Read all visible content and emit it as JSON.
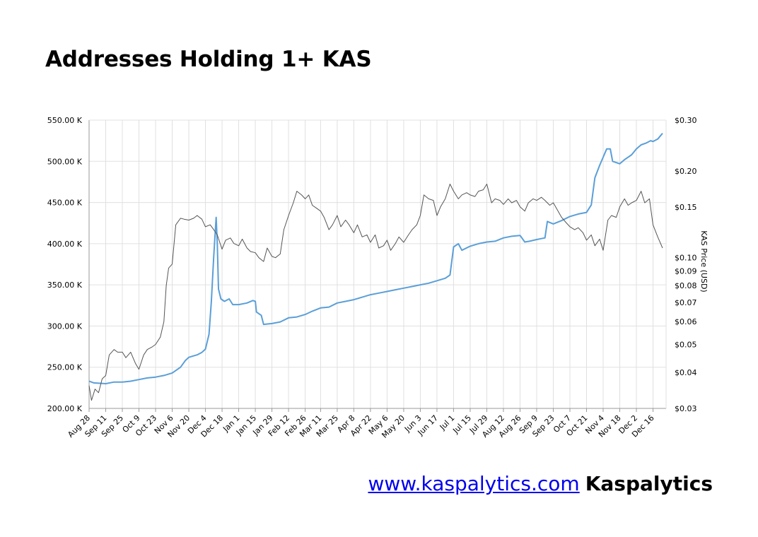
{
  "page": {
    "title": "Addresses Holding 1+ KAS",
    "footer_link": "www.kaspalytics.com",
    "footer_brand": "Kaspalytics"
  },
  "colors": {
    "addresses_line": "#5a9fd8",
    "price_line": "#555555",
    "grid": "#e0e0e0",
    "axis": "#999999"
  },
  "chart_data": {
    "type": "line",
    "title": "Addresses Holding 1+ KAS",
    "grid": true,
    "x_tick_labels": [
      "Aug 28",
      "Sep 11",
      "Sep 25",
      "Oct 9",
      "Oct 23",
      "Nov 6",
      "Nov 20",
      "Dec 4",
      "Dec 18",
      "Jan 1",
      "Jan 15",
      "Jan 29",
      "Feb 12",
      "Feb 26",
      "Mar 11",
      "Mar 25",
      "Apr 8",
      "Apr 22",
      "May 6",
      "May 20",
      "Jun 3",
      "Jun 17",
      "Jul 1",
      "Jul 15",
      "Jul 29",
      "Aug 12",
      "Aug 26",
      "Sep 9",
      "Sep 23",
      "Oct 7",
      "Oct 21",
      "Nov 4",
      "Nov 18",
      "Dec 2",
      "Dec 16"
    ],
    "y_left": {
      "label": "",
      "range": [
        200,
        550
      ],
      "ticks": [
        200,
        250,
        300,
        350,
        400,
        450,
        500,
        550
      ],
      "tick_labels": [
        "200.00 K",
        "250.00 K",
        "300.00 K",
        "350.00 K",
        "400.00 K",
        "450.00 K",
        "500.00 K",
        "550.00 K"
      ]
    },
    "y_right": {
      "label": "KAS Price (USD)",
      "scale": "log",
      "range": [
        0.03,
        0.3
      ],
      "ticks": [
        0.03,
        0.04,
        0.05,
        0.06,
        0.07,
        0.08,
        0.09,
        0.1,
        0.15,
        0.2,
        0.3
      ],
      "tick_labels": [
        "$0.03",
        "$0.04",
        "$0.05",
        "$0.06",
        "$0.07",
        "$0.08",
        "$0.09",
        "$0.10",
        "$0.15",
        "$0.20",
        "$0.30"
      ]
    },
    "series": [
      {
        "axis": "left",
        "unit": "K addresses",
        "points": [
          [
            "Aug 28",
            233
          ],
          [
            "Sep 1",
            231
          ],
          [
            "Sep 11",
            230
          ],
          [
            "Sep 18",
            232
          ],
          [
            "Sep 25",
            232
          ],
          [
            "Oct 2",
            233
          ],
          [
            "Oct 9",
            235
          ],
          [
            "Oct 16",
            237
          ],
          [
            "Oct 23",
            238
          ],
          [
            "Oct 30",
            240
          ],
          [
            "Nov 6",
            243
          ],
          [
            "Nov 13",
            250
          ],
          [
            "Nov 17",
            258
          ],
          [
            "Nov 20",
            262
          ],
          [
            "Nov 27",
            265
          ],
          [
            "Dec 1",
            268
          ],
          [
            "Dec 4",
            272
          ],
          [
            "Dec 7",
            290
          ],
          [
            "Dec 9",
            330
          ],
          [
            "Dec 11",
            385
          ],
          [
            "Dec 13",
            432
          ],
          [
            "Dec 14",
            400
          ],
          [
            "Dec 15",
            345
          ],
          [
            "Dec 17",
            333
          ],
          [
            "Dec 20",
            330
          ],
          [
            "Dec 24",
            333
          ],
          [
            "Dec 27",
            326
          ],
          [
            "Jan 1",
            326
          ],
          [
            "Jan 8",
            328
          ],
          [
            "Jan 13",
            331
          ],
          [
            "Jan 15",
            330
          ],
          [
            "Jan 16",
            317
          ],
          [
            "Jan 20",
            313
          ],
          [
            "Jan 22",
            302
          ],
          [
            "Jan 29",
            303
          ],
          [
            "Feb 5",
            305
          ],
          [
            "Feb 12",
            310
          ],
          [
            "Feb 19",
            311
          ],
          [
            "Feb 26",
            314
          ],
          [
            "Mar 4",
            318
          ],
          [
            "Mar 11",
            322
          ],
          [
            "Mar 18",
            323
          ],
          [
            "Mar 25",
            328
          ],
          [
            "Apr 1",
            330
          ],
          [
            "Apr 8",
            332
          ],
          [
            "Apr 15",
            335
          ],
          [
            "Apr 22",
            338
          ],
          [
            "Apr 29",
            340
          ],
          [
            "May 6",
            342
          ],
          [
            "May 13",
            344
          ],
          [
            "May 20",
            346
          ],
          [
            "May 27",
            348
          ],
          [
            "Jun 3",
            350
          ],
          [
            "Jun 10",
            352
          ],
          [
            "Jun 17",
            355
          ],
          [
            "Jun 24",
            358
          ],
          [
            "Jun 28",
            362
          ],
          [
            "Jul 1",
            396
          ],
          [
            "Jul 5",
            400
          ],
          [
            "Jul 8",
            392
          ],
          [
            "Jul 15",
            397
          ],
          [
            "Jul 22",
            400
          ],
          [
            "Jul 29",
            402
          ],
          [
            "Aug 5",
            403
          ],
          [
            "Aug 12",
            407
          ],
          [
            "Aug 19",
            409
          ],
          [
            "Aug 26",
            410
          ],
          [
            "Aug 30",
            402
          ],
          [
            "Sep 3",
            403
          ],
          [
            "Sep 9",
            405
          ],
          [
            "Sep 16",
            407
          ],
          [
            "Sep 18",
            427
          ],
          [
            "Sep 23",
            424
          ],
          [
            "Sep 30",
            428
          ],
          [
            "Oct 7",
            433
          ],
          [
            "Oct 14",
            436
          ],
          [
            "Oct 21",
            438
          ],
          [
            "Oct 25",
            447
          ],
          [
            "Oct 28",
            480
          ],
          [
            "Nov 1",
            495
          ],
          [
            "Nov 4",
            505
          ],
          [
            "Nov 7",
            515
          ],
          [
            "Nov 10",
            515
          ],
          [
            "Nov 12",
            500
          ],
          [
            "Nov 18",
            497
          ],
          [
            "Nov 22",
            502
          ],
          [
            "Nov 28",
            508
          ],
          [
            "Dec 2",
            515
          ],
          [
            "Dec 6",
            520
          ],
          [
            "Dec 10",
            522
          ],
          [
            "Dec 14",
            525
          ],
          [
            "Dec 16",
            524
          ],
          [
            "Dec 20",
            527
          ],
          [
            "Dec 24",
            534
          ]
        ]
      },
      {
        "axis": "right",
        "unit": "USD",
        "points": [
          [
            "Aug 28",
            0.036
          ],
          [
            "Aug 30",
            0.032
          ],
          [
            "Sep 2",
            0.035
          ],
          [
            "Sep 5",
            0.034
          ],
          [
            "Sep 8",
            0.038
          ],
          [
            "Sep 11",
            0.039
          ],
          [
            "Sep 14",
            0.046
          ],
          [
            "Sep 18",
            0.048
          ],
          [
            "Sep 21",
            0.047
          ],
          [
            "Sep 25",
            0.047
          ],
          [
            "Sep 28",
            0.045
          ],
          [
            "Oct 2",
            0.047
          ],
          [
            "Oct 6",
            0.043
          ],
          [
            "Oct 9",
            0.041
          ],
          [
            "Oct 13",
            0.046
          ],
          [
            "Oct 16",
            0.048
          ],
          [
            "Oct 20",
            0.049
          ],
          [
            "Oct 23",
            0.05
          ],
          [
            "Oct 27",
            0.053
          ],
          [
            "Oct 30",
            0.06
          ],
          [
            "Nov 1",
            0.08
          ],
          [
            "Nov 3",
            0.092
          ],
          [
            "Nov 6",
            0.095
          ],
          [
            "Nov 9",
            0.13
          ],
          [
            "Nov 13",
            0.137
          ],
          [
            "Nov 16",
            0.136
          ],
          [
            "Nov 20",
            0.135
          ],
          [
            "Nov 24",
            0.137
          ],
          [
            "Nov 27",
            0.14
          ],
          [
            "Dec 1",
            0.136
          ],
          [
            "Dec 4",
            0.128
          ],
          [
            "Dec 8",
            0.13
          ],
          [
            "Dec 11",
            0.125
          ],
          [
            "Dec 14",
            0.12
          ],
          [
            "Dec 18",
            0.107
          ],
          [
            "Dec 21",
            0.115
          ],
          [
            "Dec 25",
            0.117
          ],
          [
            "Dec 28",
            0.112
          ],
          [
            "Jan 1",
            0.11
          ],
          [
            "Jan 4",
            0.116
          ],
          [
            "Jan 8",
            0.108
          ],
          [
            "Jan 11",
            0.105
          ],
          [
            "Jan 15",
            0.104
          ],
          [
            "Jan 18",
            0.1
          ],
          [
            "Jan 22",
            0.097
          ],
          [
            "Jan 25",
            0.108
          ],
          [
            "Jan 29",
            0.101
          ],
          [
            "Feb 1",
            0.1
          ],
          [
            "Feb 5",
            0.103
          ],
          [
            "Feb 8",
            0.125
          ],
          [
            "Feb 12",
            0.14
          ],
          [
            "Feb 16",
            0.155
          ],
          [
            "Feb 19",
            0.17
          ],
          [
            "Feb 23",
            0.165
          ],
          [
            "Feb 26",
            0.16
          ],
          [
            "Mar 1",
            0.165
          ],
          [
            "Mar 4",
            0.152
          ],
          [
            "Mar 8",
            0.148
          ],
          [
            "Mar 11",
            0.145
          ],
          [
            "Mar 14",
            0.138
          ],
          [
            "Mar 18",
            0.125
          ],
          [
            "Mar 21",
            0.13
          ],
          [
            "Mar 25",
            0.14
          ],
          [
            "Mar 28",
            0.128
          ],
          [
            "Apr 1",
            0.135
          ],
          [
            "Apr 4",
            0.13
          ],
          [
            "Apr 8",
            0.122
          ],
          [
            "Apr 11",
            0.13
          ],
          [
            "Apr 15",
            0.118
          ],
          [
            "Apr 19",
            0.12
          ],
          [
            "Apr 22",
            0.113
          ],
          [
            "Apr 26",
            0.12
          ],
          [
            "Apr 29",
            0.108
          ],
          [
            "May 3",
            0.11
          ],
          [
            "May 6",
            0.115
          ],
          [
            "May 9",
            0.106
          ],
          [
            "May 13",
            0.112
          ],
          [
            "May 16",
            0.118
          ],
          [
            "May 20",
            0.113
          ],
          [
            "May 24",
            0.12
          ],
          [
            "May 27",
            0.125
          ],
          [
            "May 31",
            0.13
          ],
          [
            "Jun 3",
            0.14
          ],
          [
            "Jun 6",
            0.165
          ],
          [
            "Jun 10",
            0.16
          ],
          [
            "Jun 14",
            0.158
          ],
          [
            "Jun 17",
            0.14
          ],
          [
            "Jun 20",
            0.15
          ],
          [
            "Jun 24",
            0.16
          ],
          [
            "Jun 28",
            0.18
          ],
          [
            "Jul 1",
            0.17
          ],
          [
            "Jul 5",
            0.16
          ],
          [
            "Jul 8",
            0.165
          ],
          [
            "Jul 12",
            0.168
          ],
          [
            "Jul 15",
            0.165
          ],
          [
            "Jul 19",
            0.163
          ],
          [
            "Jul 22",
            0.17
          ],
          [
            "Jul 26",
            0.172
          ],
          [
            "Jul 29",
            0.18
          ],
          [
            "Aug 2",
            0.155
          ],
          [
            "Aug 5",
            0.16
          ],
          [
            "Aug 9",
            0.158
          ],
          [
            "Aug 12",
            0.153
          ],
          [
            "Aug 16",
            0.16
          ],
          [
            "Aug 19",
            0.155
          ],
          [
            "Aug 23",
            0.158
          ],
          [
            "Aug 26",
            0.15
          ],
          [
            "Aug 30",
            0.145
          ],
          [
            "Sep 2",
            0.155
          ],
          [
            "Sep 6",
            0.16
          ],
          [
            "Sep 9",
            0.158
          ],
          [
            "Sep 13",
            0.162
          ],
          [
            "Sep 16",
            0.158
          ],
          [
            "Sep 20",
            0.152
          ],
          [
            "Sep 23",
            0.155
          ],
          [
            "Sep 27",
            0.145
          ],
          [
            "Sep 30",
            0.138
          ],
          [
            "Oct 4",
            0.132
          ],
          [
            "Oct 7",
            0.128
          ],
          [
            "Oct 11",
            0.125
          ],
          [
            "Oct 14",
            0.127
          ],
          [
            "Oct 18",
            0.122
          ],
          [
            "Oct 21",
            0.115
          ],
          [
            "Oct 25",
            0.12
          ],
          [
            "Oct 28",
            0.11
          ],
          [
            "Nov 1",
            0.116
          ],
          [
            "Nov 4",
            0.106
          ],
          [
            "Nov 8",
            0.135
          ],
          [
            "Nov 11",
            0.14
          ],
          [
            "Nov 15",
            0.138
          ],
          [
            "Nov 18",
            0.15
          ],
          [
            "Nov 22",
            0.16
          ],
          [
            "Nov 25",
            0.152
          ],
          [
            "Nov 28",
            0.155
          ],
          [
            "Dec 2",
            0.158
          ],
          [
            "Dec 6",
            0.17
          ],
          [
            "Dec 9",
            0.155
          ],
          [
            "Dec 13",
            0.16
          ],
          [
            "Dec 16",
            0.13
          ],
          [
            "Dec 20",
            0.118
          ],
          [
            "Dec 24",
            0.108
          ]
        ]
      }
    ]
  }
}
